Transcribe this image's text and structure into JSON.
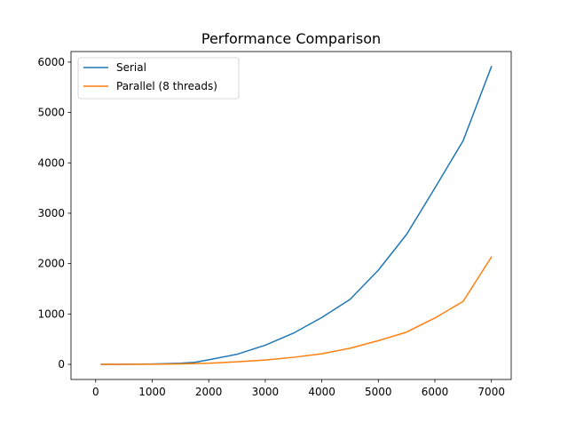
{
  "chart_data": {
    "type": "line",
    "title": "Performance Comparison",
    "xlabel": "",
    "ylabel": "",
    "xlim": [
      -436,
      7350
    ],
    "ylim": [
      -300,
      6210
    ],
    "x_ticks": [
      0,
      1000,
      2000,
      3000,
      4000,
      5000,
      6000,
      7000
    ],
    "y_ticks": [
      0,
      1000,
      2000,
      3000,
      4000,
      5000,
      6000
    ],
    "grid": false,
    "legend_position": "top-left",
    "series": [
      {
        "name": "Serial",
        "color": "#1f77b4",
        "x": [
          100,
          500,
          1000,
          1500,
          1750,
          2000,
          2500,
          3000,
          3500,
          4000,
          4500,
          5000,
          5500,
          6000,
          6500,
          7000
        ],
        "y": [
          0,
          2,
          6,
          22,
          40,
          90,
          200,
          380,
          620,
          930,
          1290,
          1870,
          2580,
          3500,
          4440,
          5910
        ]
      },
      {
        "name": "Parallel (8 threads)",
        "color": "#ff7f0e",
        "x": [
          100,
          500,
          1000,
          1500,
          2000,
          2500,
          3000,
          3500,
          4000,
          4500,
          5000,
          5500,
          6000,
          6500,
          7000
        ],
        "y": [
          0,
          1,
          3,
          8,
          22,
          50,
          85,
          140,
          210,
          320,
          470,
          640,
          920,
          1250,
          2130
        ]
      }
    ]
  }
}
